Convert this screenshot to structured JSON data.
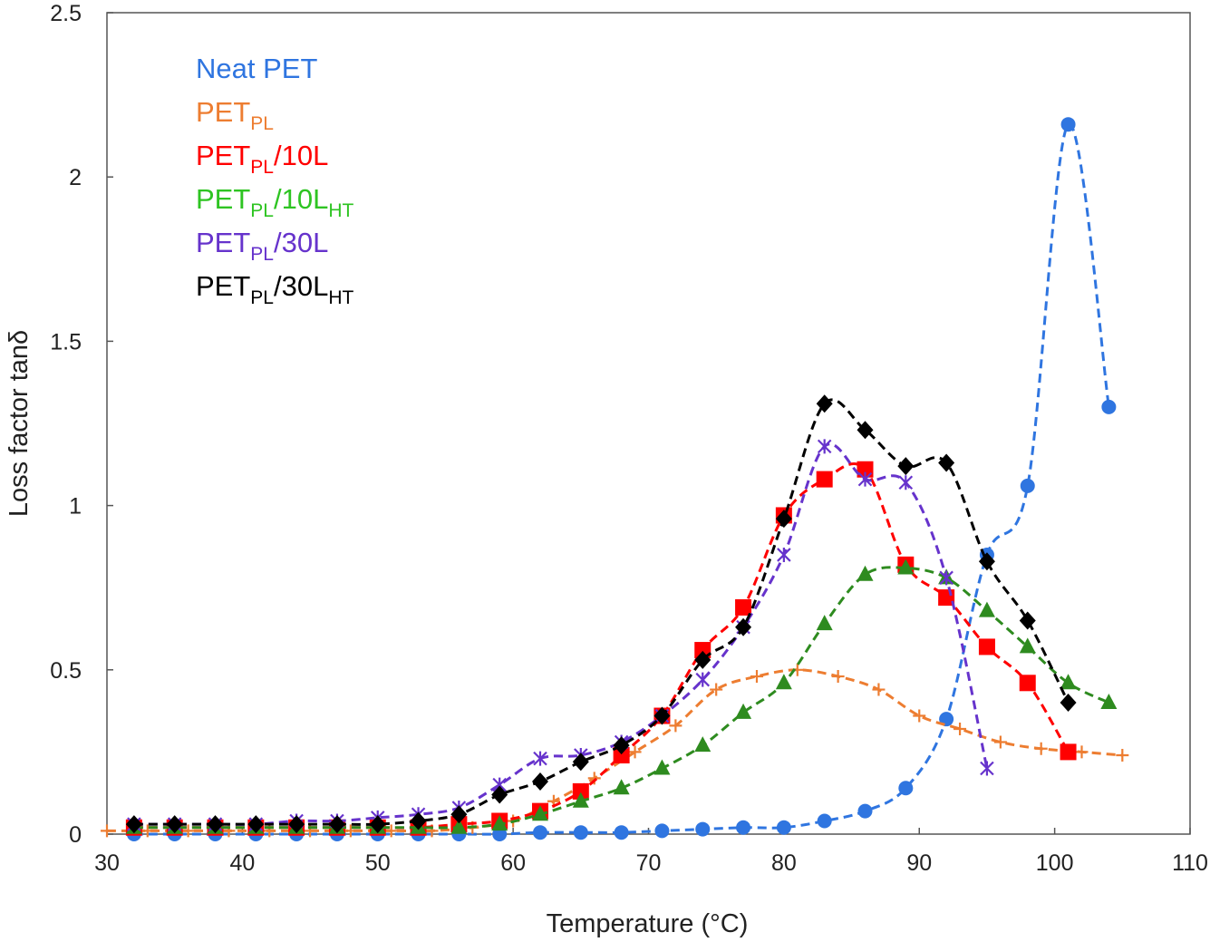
{
  "chart_data": {
    "type": "line",
    "title": "",
    "xlabel": "Temperature (°C)",
    "ylabel": "Loss factor tanδ",
    "xlim": [
      30,
      110
    ],
    "ylim": [
      0,
      2.5
    ],
    "xticks": [
      "30",
      "40",
      "50",
      "60",
      "70",
      "80",
      "90",
      "100",
      "110"
    ],
    "yticks": [
      "0",
      "0.5",
      "1",
      "1.5",
      "2",
      "2.5"
    ],
    "grid": false,
    "legend_position": "top-left",
    "series": [
      {
        "name": "Neat PET",
        "legend": {
          "main": "Neat PET",
          "sub1": "",
          "mid": "",
          "sub2": ""
        },
        "color": "#2f75e0",
        "marker": "circle",
        "x": [
          32,
          35,
          38,
          41,
          44,
          47,
          50,
          53,
          56,
          59,
          62,
          65,
          68,
          71,
          74,
          77,
          80,
          83,
          86,
          89,
          92,
          95,
          98,
          101,
          104
        ],
        "y": [
          0,
          0,
          0,
          0,
          0,
          0,
          0,
          0,
          0,
          0,
          0.005,
          0.005,
          0.005,
          0.01,
          0.015,
          0.02,
          0.02,
          0.04,
          0.07,
          0.14,
          0.35,
          0.85,
          1.06,
          2.16,
          1.3
        ]
      },
      {
        "name": "PETPL",
        "legend": {
          "main": "PET",
          "sub1": "PL",
          "mid": "",
          "sub2": ""
        },
        "color": "#ed7d31",
        "marker": "plus",
        "x": [
          30,
          33,
          36,
          39,
          42,
          45,
          48,
          51,
          54,
          57,
          60,
          63,
          66,
          69,
          72,
          75,
          78,
          81,
          84,
          87,
          90,
          93,
          96,
          99,
          102,
          105
        ],
        "y": [
          0.01,
          0.01,
          0.01,
          0.01,
          0.01,
          0.01,
          0.01,
          0.01,
          0.01,
          0.02,
          0.04,
          0.1,
          0.17,
          0.25,
          0.33,
          0.44,
          0.48,
          0.5,
          0.48,
          0.44,
          0.36,
          0.32,
          0.28,
          0.26,
          0.25,
          0.24
        ]
      },
      {
        "name": "PETPL/10L",
        "legend": {
          "main": "PET",
          "sub1": "PL",
          "mid": "/10L",
          "sub2": ""
        },
        "color": "#ff0000",
        "marker": "square",
        "x": [
          32,
          35,
          38,
          41,
          44,
          47,
          50,
          53,
          56,
          59,
          62,
          65,
          68,
          71,
          74,
          77,
          80,
          83,
          86,
          89,
          92,
          95,
          98,
          101
        ],
        "y": [
          0.02,
          0.02,
          0.02,
          0.02,
          0.02,
          0.02,
          0.02,
          0.02,
          0.03,
          0.04,
          0.07,
          0.13,
          0.24,
          0.36,
          0.56,
          0.69,
          0.97,
          1.08,
          1.11,
          0.82,
          0.72,
          0.57,
          0.46,
          0.25
        ]
      },
      {
        "name": "PETPL/10LHT",
        "legend": {
          "main": "PET",
          "sub1": "PL",
          "mid": "/10L",
          "sub2": "HT"
        },
        "color": "#2e8b1f",
        "marker": "triangle",
        "x": [
          32,
          35,
          38,
          41,
          44,
          47,
          50,
          53,
          56,
          59,
          62,
          65,
          68,
          71,
          74,
          77,
          80,
          83,
          86,
          89,
          92,
          95,
          98,
          101,
          104
        ],
        "y": [
          0.02,
          0.02,
          0.02,
          0.02,
          0.02,
          0.02,
          0.02,
          0.02,
          0.02,
          0.03,
          0.06,
          0.1,
          0.14,
          0.2,
          0.27,
          0.37,
          0.46,
          0.64,
          0.79,
          0.81,
          0.78,
          0.68,
          0.57,
          0.46,
          0.4
        ]
      },
      {
        "name": "PETPL/30L",
        "legend": {
          "main": "PET",
          "sub1": "PL",
          "mid": "/30L",
          "sub2": ""
        },
        "color": "#6633cc",
        "marker": "asterisk",
        "x": [
          32,
          35,
          38,
          41,
          44,
          47,
          50,
          53,
          56,
          59,
          62,
          65,
          68,
          71,
          74,
          77,
          80,
          83,
          86,
          89,
          92,
          95
        ],
        "y": [
          0.03,
          0.03,
          0.03,
          0.03,
          0.04,
          0.04,
          0.05,
          0.06,
          0.08,
          0.15,
          0.23,
          0.24,
          0.28,
          0.36,
          0.47,
          0.63,
          0.85,
          1.18,
          1.08,
          1.07,
          0.78,
          0.2
        ]
      },
      {
        "name": "PETPL/30LHT",
        "legend": {
          "main": "PET",
          "sub1": "PL",
          "mid": "/30L",
          "sub2": "HT"
        },
        "color": "#000000",
        "marker": "diamond",
        "x": [
          32,
          35,
          38,
          41,
          44,
          47,
          50,
          53,
          56,
          59,
          62,
          65,
          68,
          71,
          74,
          77,
          80,
          83,
          86,
          89,
          92,
          95,
          98,
          101
        ],
        "y": [
          0.03,
          0.03,
          0.03,
          0.03,
          0.03,
          0.03,
          0.03,
          0.04,
          0.06,
          0.12,
          0.16,
          0.22,
          0.27,
          0.36,
          0.53,
          0.63,
          0.96,
          1.31,
          1.23,
          1.12,
          1.13,
          0.83,
          0.65,
          0.4
        ]
      }
    ]
  }
}
